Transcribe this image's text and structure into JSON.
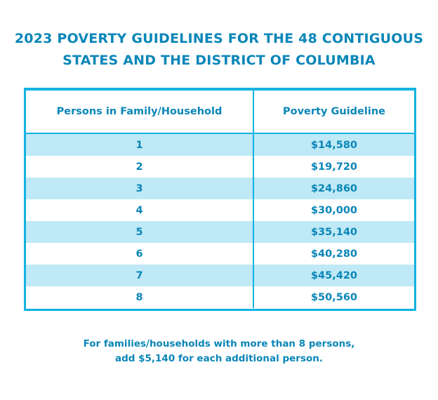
{
  "title": {
    "line1": "2023 POVERTY GUIDELINES FOR THE 48 CONTIGUOUS",
    "line2": "STATES AND THE DISTRICT OF COLUMBIA"
  },
  "table": {
    "headers": [
      "Persons in Family/Household",
      "Poverty Guideline"
    ],
    "rows": [
      {
        "persons": "1",
        "guideline": "$14,580"
      },
      {
        "persons": "2",
        "guideline": "$19,720"
      },
      {
        "persons": "3",
        "guideline": "$24,860"
      },
      {
        "persons": "4",
        "guideline": "$30,000"
      },
      {
        "persons": "5",
        "guideline": "$35,140"
      },
      {
        "persons": "6",
        "guideline": "$40,280"
      },
      {
        "persons": "7",
        "guideline": "$45,420"
      },
      {
        "persons": "8",
        "guideline": "$50,560"
      }
    ]
  },
  "footnote": {
    "line1": "For families/households with more than 8 persons,",
    "line2": "add $5,140 for each additional person."
  },
  "colors": {
    "text": "#0a86b8",
    "border": "#12b2e2",
    "row_shade": "#bfe9f6",
    "background": "#ffffff"
  }
}
